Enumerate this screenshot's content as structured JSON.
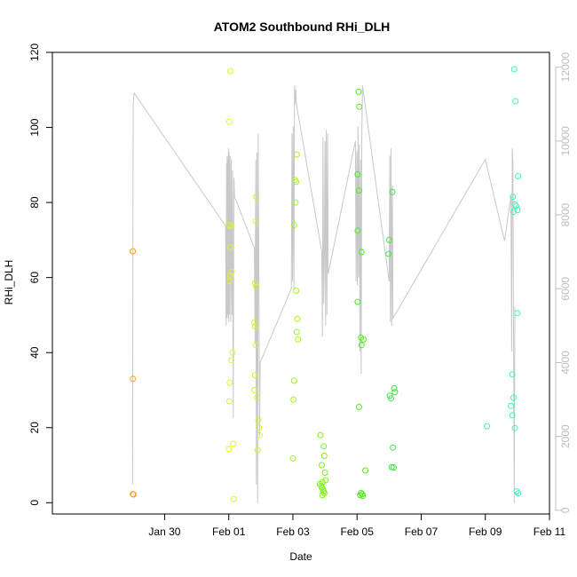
{
  "chart_data": {
    "type": "scatter",
    "title": "ATOM2 Southbound RHi_DLH",
    "xlabel": "Date",
    "ylabel": "RHi_DLH",
    "x_axis": {
      "min_day": -3.5,
      "max_day": 12.0,
      "ticks": [
        {
          "day": 0,
          "label": "Jan 30"
        },
        {
          "day": 2,
          "label": "Feb 01"
        },
        {
          "day": 4,
          "label": "Feb 03"
        },
        {
          "day": 6,
          "label": "Feb 05"
        },
        {
          "day": 8,
          "label": "Feb 07"
        },
        {
          "day": 10,
          "label": "Feb 09"
        },
        {
          "day": 12,
          "label": "Feb 11"
        }
      ]
    },
    "y_left": {
      "min": -3,
      "max": 120,
      "ticks": [
        0,
        20,
        40,
        60,
        80,
        100,
        120
      ]
    },
    "y_right": {
      "min": -100,
      "max": 12400,
      "ticks": [
        0,
        2000,
        4000,
        6000,
        8000,
        10000,
        12000
      ],
      "color": "#bdbdbd"
    },
    "altitude_color": "#c8c8c8",
    "altitude_series": [
      [
        -1.0,
        700
      ],
      [
        -0.98,
        11000
      ],
      [
        -0.95,
        11300
      ],
      [
        1.9,
        7700
      ],
      [
        1.92,
        5000
      ],
      [
        1.93,
        9400
      ],
      [
        1.94,
        5200
      ],
      [
        1.95,
        9600
      ],
      [
        1.96,
        5300
      ],
      [
        1.97,
        9500
      ],
      [
        1.98,
        5200
      ],
      [
        1.99,
        9800
      ],
      [
        2.0,
        5100
      ],
      [
        2.01,
        9700
      ],
      [
        2.02,
        5300
      ],
      [
        2.04,
        9600
      ],
      [
        2.06,
        5100
      ],
      [
        2.08,
        9500
      ],
      [
        2.1,
        5300
      ],
      [
        2.12,
        9200
      ],
      [
        2.14,
        2500
      ],
      [
        2.16,
        9000
      ],
      [
        2.18,
        8500
      ],
      [
        2.8,
        7100
      ],
      [
        2.82,
        4500
      ],
      [
        2.84,
        9500
      ],
      [
        2.86,
        700
      ],
      [
        2.88,
        9700
      ],
      [
        2.9,
        200
      ],
      [
        2.92,
        10200
      ],
      [
        2.94,
        6000
      ],
      [
        2.96,
        2000
      ],
      [
        2.98,
        4000
      ],
      [
        3.95,
        6000
      ],
      [
        3.97,
        10200
      ],
      [
        3.99,
        6200
      ],
      [
        4.01,
        10400
      ],
      [
        4.03,
        6000
      ],
      [
        4.05,
        11500
      ],
      [
        4.07,
        11000
      ],
      [
        4.09,
        11400
      ],
      [
        4.11,
        11000
      ],
      [
        4.9,
        7000
      ],
      [
        4.92,
        4700
      ],
      [
        4.94,
        10100
      ],
      [
        4.96,
        5600
      ],
      [
        4.98,
        6800
      ],
      [
        5.0,
        10000
      ],
      [
        5.02,
        5000
      ],
      [
        5.04,
        10300
      ],
      [
        5.06,
        5300
      ],
      [
        5.08,
        10200
      ],
      [
        5.1,
        6400
      ],
      [
        5.95,
        10000
      ],
      [
        5.97,
        6200
      ],
      [
        5.99,
        9700
      ],
      [
        6.01,
        6100
      ],
      [
        6.03,
        10400
      ],
      [
        6.05,
        6300
      ],
      [
        6.07,
        9900
      ],
      [
        6.09,
        4300
      ],
      [
        6.11,
        9500
      ],
      [
        6.13,
        3700
      ],
      [
        6.15,
        10200
      ],
      [
        6.17,
        11500
      ],
      [
        7.0,
        6200
      ],
      [
        7.02,
        9600
      ],
      [
        7.04,
        5100
      ],
      [
        7.06,
        9800
      ],
      [
        7.08,
        5000
      ],
      [
        7.1,
        8800
      ],
      [
        7.12,
        5200
      ],
      [
        10.0,
        9500
      ],
      [
        10.6,
        7300
      ],
      [
        10.8,
        8500
      ],
      [
        10.82,
        4300
      ],
      [
        10.84,
        9800
      ],
      [
        10.86,
        9400
      ],
      [
        10.88,
        5000
      ],
      [
        10.9,
        200
      ],
      [
        10.92,
        5500
      ]
    ],
    "series": [
      {
        "color": "#ff9a1a",
        "points": [
          [
            -0.99,
            67.0
          ],
          [
            -0.99,
            33.0
          ],
          [
            -0.99,
            2.3
          ],
          [
            -0.97,
            2.2
          ]
        ]
      },
      {
        "color": "#e3f231",
        "points": [
          [
            2.05,
            115.0
          ],
          [
            2.02,
            101.5
          ],
          [
            2.0,
            74.0
          ],
          [
            2.06,
            73.8
          ],
          [
            2.05,
            68.0
          ],
          [
            2.09,
            61.5
          ],
          [
            2.05,
            60.5
          ],
          [
            2.03,
            59.0
          ],
          [
            2.12,
            40.0
          ],
          [
            2.08,
            38.0
          ],
          [
            2.03,
            32.0
          ],
          [
            2.02,
            27.0
          ],
          [
            2.0,
            14.3
          ],
          [
            2.14,
            15.7
          ],
          [
            2.15,
            1.0
          ]
        ]
      },
      {
        "color": "#cdf531",
        "points": [
          [
            2.86,
            81.5
          ],
          [
            2.84,
            75.0
          ],
          [
            2.82,
            58.5
          ],
          [
            2.86,
            57.5
          ],
          [
            2.8,
            48.0
          ],
          [
            2.82,
            47.0
          ],
          [
            2.84,
            42.0
          ],
          [
            2.82,
            34.0
          ],
          [
            2.8,
            30.0
          ],
          [
            2.88,
            28.0
          ],
          [
            2.92,
            22.0
          ],
          [
            2.94,
            20.0
          ],
          [
            2.96,
            18.0
          ],
          [
            2.9,
            14.0
          ]
        ]
      },
      {
        "color": "#a5f41e",
        "points": [
          [
            4.12,
            92.8
          ],
          [
            4.06,
            86.0
          ],
          [
            4.1,
            85.5
          ],
          [
            4.08,
            80.0
          ],
          [
            4.04,
            74.0
          ],
          [
            4.1,
            56.5
          ],
          [
            4.14,
            49.0
          ],
          [
            4.12,
            45.5
          ],
          [
            4.16,
            43.5
          ],
          [
            4.04,
            32.5
          ],
          [
            4.02,
            27.5
          ],
          [
            4.0,
            11.8
          ]
        ]
      },
      {
        "color": "#7ef21a",
        "points": [
          [
            4.86,
            18.0
          ],
          [
            4.96,
            15.0
          ],
          [
            4.9,
            10.0
          ],
          [
            4.98,
            12.5
          ],
          [
            5.0,
            8.0
          ],
          [
            5.02,
            6.0
          ],
          [
            4.92,
            5.5
          ],
          [
            4.84,
            5.0
          ],
          [
            4.88,
            4.5
          ],
          [
            4.9,
            4.0
          ],
          [
            4.94,
            3.5
          ],
          [
            4.96,
            3.0
          ],
          [
            4.98,
            2.5
          ],
          [
            4.92,
            2.0
          ]
        ]
      },
      {
        "color": "#4fec22",
        "points": [
          [
            6.05,
            109.5
          ],
          [
            6.07,
            105.5
          ],
          [
            6.02,
            87.5
          ],
          [
            6.06,
            83.2
          ],
          [
            6.02,
            72.5
          ],
          [
            6.14,
            66.8
          ],
          [
            6.02,
            53.5
          ],
          [
            6.12,
            44.0
          ],
          [
            6.2,
            43.5
          ],
          [
            6.14,
            42.0
          ],
          [
            6.06,
            25.5
          ],
          [
            6.26,
            8.6
          ],
          [
            6.12,
            2.6
          ],
          [
            6.16,
            2.3
          ],
          [
            6.1,
            2.0
          ],
          [
            6.18,
            1.8
          ]
        ]
      },
      {
        "color": "#3de83f",
        "points": [
          [
            7.0,
            70.0
          ],
          [
            7.1,
            82.8
          ],
          [
            6.98,
            66.3
          ],
          [
            7.16,
            30.5
          ],
          [
            7.18,
            29.5
          ],
          [
            7.02,
            28.5
          ],
          [
            7.06,
            27.8
          ],
          [
            7.12,
            14.7
          ],
          [
            7.08,
            9.5
          ],
          [
            7.14,
            9.4
          ]
        ]
      },
      {
        "color": "#3ef5b8",
        "points": [
          [
            10.05,
            20.4
          ],
          [
            10.9,
            115.5
          ],
          [
            10.94,
            107.0
          ],
          [
            11.02,
            87.0
          ],
          [
            10.86,
            81.5
          ],
          [
            10.92,
            79.5
          ],
          [
            10.96,
            79.0
          ],
          [
            11.0,
            78.0
          ],
          [
            10.88,
            77.5
          ],
          [
            11.0,
            50.5
          ],
          [
            10.84,
            34.2
          ],
          [
            10.88,
            28.0
          ],
          [
            10.8,
            25.8
          ],
          [
            10.84,
            23.3
          ],
          [
            10.92,
            19.9
          ],
          [
            10.98,
            3.0
          ],
          [
            11.02,
            2.5
          ]
        ]
      }
    ]
  }
}
